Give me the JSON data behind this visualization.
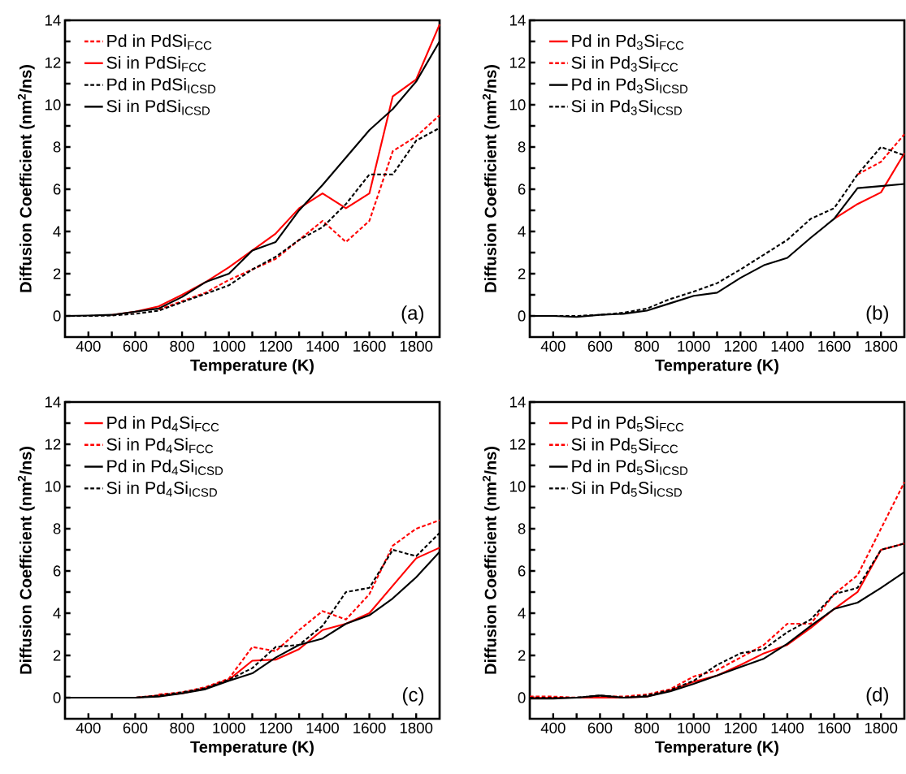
{
  "chart_data": [
    {
      "type": "line",
      "xlabel": "Temperature (K)",
      "ylabel": "Diffusion Coefficient (nm$^{2}$/ns)",
      "annotations": [
        "(a)"
      ],
      "legend": "top left",
      "x": [
        300,
        400,
        500,
        600,
        700,
        800,
        900,
        1000,
        1100,
        1200,
        1300,
        1400,
        1500,
        1600,
        1700,
        1800,
        1900
      ],
      "xlim": [
        300,
        1900
      ],
      "ylim": [
        -1,
        14
      ],
      "xticks": [
        400,
        {
          "value": 500,
          "label": null
        },
        600,
        {
          "value": 700,
          "label": null
        },
        800,
        {
          "value": 900,
          "label": null
        },
        1000,
        {
          "value": 1100,
          "label": null
        },
        1200,
        {
          "value": 1300,
          "label": null
        },
        1400,
        {
          "value": 1500,
          "label": null
        },
        1600,
        {
          "value": 1700,
          "label": null
        },
        1800
      ],
      "yticks": [
        0,
        {
          "value": 1,
          "label": null
        },
        2,
        {
          "value": 3,
          "label": null
        },
        4,
        {
          "value": 5,
          "label": null
        },
        6,
        {
          "value": 7,
          "label": null
        },
        8,
        {
          "value": 9,
          "label": null
        },
        10,
        {
          "value": 11,
          "label": null
        },
        12,
        {
          "value": 13,
          "label": null
        },
        14
      ],
      "series": [
        {
          "name": "Pd in PdSi$_{FCC}$",
          "color": "#ff0000",
          "line_style": "dashed",
          "values": [
            null,
            null,
            null,
            null,
            0.3,
            0.7,
            1.1,
            1.7,
            2.2,
            2.7,
            3.6,
            4.5,
            3.5,
            4.5,
            7.8,
            8.5,
            9.5
          ]
        },
        {
          "name": "Si in PdSi$_{FCC}$",
          "color": "#ff0000",
          "line_style": "solid",
          "values": [
            null,
            null,
            0.05,
            0.2,
            0.45,
            1.0,
            1.6,
            2.3,
            3.1,
            3.9,
            5.1,
            5.8,
            5.1,
            5.8,
            10.4,
            11.2,
            13.8
          ]
        },
        {
          "name": "Pd in PdSi$_{ICSD}$",
          "color": "#000000",
          "line_style": "dashed",
          "values": [
            0,
            0,
            0.02,
            0.1,
            0.25,
            0.65,
            1.05,
            1.45,
            2.2,
            2.8,
            3.6,
            4.2,
            5.3,
            6.7,
            6.7,
            8.3,
            8.9
          ]
        },
        {
          "name": "Si in PdSi$_{ICSD}$",
          "color": "#000000",
          "line_style": "solid",
          "values": [
            0,
            0.02,
            0.05,
            0.2,
            0.35,
            0.9,
            1.6,
            2.0,
            3.1,
            3.5,
            5.0,
            6.2,
            7.5,
            8.8,
            9.8,
            11.1,
            13.0
          ]
        }
      ]
    },
    {
      "type": "line",
      "xlabel": "Temperature (K)",
      "ylabel": "Diffusion Coefficient (nm$^{2}$/ns)",
      "annotations": [
        "(b)"
      ],
      "legend": "top left",
      "x": [
        300,
        400,
        500,
        600,
        700,
        800,
        900,
        1000,
        1100,
        1200,
        1300,
        1400,
        1500,
        1600,
        1700,
        1800,
        1900
      ],
      "xlim": [
        300,
        1900
      ],
      "ylim": [
        -1,
        14
      ],
      "xticks": [
        400,
        {
          "value": 500,
          "label": null
        },
        600,
        {
          "value": 700,
          "label": null
        },
        800,
        {
          "value": 900,
          "label": null
        },
        1000,
        {
          "value": 1100,
          "label": null
        },
        1200,
        {
          "value": 1300,
          "label": null
        },
        1400,
        {
          "value": 1500,
          "label": null
        },
        1600,
        {
          "value": 1700,
          "label": null
        },
        1800
      ],
      "yticks": [
        0,
        {
          "value": 1,
          "label": null
        },
        2,
        {
          "value": 3,
          "label": null
        },
        4,
        {
          "value": 5,
          "label": null
        },
        6,
        {
          "value": 7,
          "label": null
        },
        8,
        {
          "value": 9,
          "label": null
        },
        10,
        {
          "value": 11,
          "label": null
        },
        12,
        {
          "value": 13,
          "label": null
        },
        14
      ],
      "series": [
        {
          "name": "Pd in Pd$_{3}$Si$_{FCC}$",
          "color": "#ff0000",
          "line_style": "solid",
          "values": [
            null,
            null,
            null,
            null,
            null,
            null,
            null,
            null,
            null,
            null,
            null,
            null,
            null,
            4.6,
            5.3,
            5.85,
            7.7
          ]
        },
        {
          "name": "Si in Pd$_{3}$Si$_{FCC}$",
          "color": "#ff0000",
          "line_style": "dashed",
          "values": [
            null,
            null,
            null,
            null,
            null,
            null,
            null,
            null,
            null,
            null,
            null,
            null,
            null,
            null,
            6.7,
            7.3,
            8.6
          ]
        },
        {
          "name": "Pd in Pd$_{3}$Si$_{ICSD}$",
          "color": "#000000",
          "line_style": "solid",
          "values": [
            0,
            0,
            -0.05,
            0.05,
            0.1,
            0.25,
            0.6,
            0.95,
            1.1,
            1.8,
            2.4,
            2.75,
            3.7,
            4.6,
            6.05,
            6.15,
            6.25
          ]
        },
        {
          "name": "Si in Pd$_{3}$Si$_{ICSD}$",
          "color": "#000000",
          "line_style": "dashed",
          "values": [
            0,
            0,
            0,
            0.05,
            0.15,
            0.35,
            0.8,
            1.15,
            1.55,
            2.2,
            2.9,
            3.6,
            4.6,
            5.1,
            6.7,
            8.0,
            7.6
          ]
        }
      ]
    },
    {
      "type": "line",
      "xlabel": "Temperature (K)",
      "ylabel": "Diffusion Coefficient (nm$^{2}$/ns)",
      "annotations": [
        "(c)"
      ],
      "legend": "top left",
      "x": [
        300,
        400,
        500,
        600,
        700,
        800,
        900,
        1000,
        1100,
        1200,
        1300,
        1400,
        1500,
        1600,
        1700,
        1800,
        1900
      ],
      "xlim": [
        300,
        1900
      ],
      "ylim": [
        -1,
        14
      ],
      "xticks": [
        400,
        {
          "value": 500,
          "label": null
        },
        600,
        {
          "value": 700,
          "label": null
        },
        800,
        {
          "value": 900,
          "label": null
        },
        1000,
        {
          "value": 1100,
          "label": null
        },
        1200,
        {
          "value": 1300,
          "label": null
        },
        1400,
        {
          "value": 1500,
          "label": null
        },
        1600,
        {
          "value": 1700,
          "label": null
        },
        1800
      ],
      "yticks": [
        0,
        {
          "value": 1,
          "label": null
        },
        2,
        {
          "value": 3,
          "label": null
        },
        4,
        {
          "value": 5,
          "label": null
        },
        6,
        {
          "value": 7,
          "label": null
        },
        8,
        {
          "value": 9,
          "label": null
        },
        10,
        {
          "value": 11,
          "label": null
        },
        12,
        {
          "value": 13,
          "label": null
        },
        14
      ],
      "series": [
        {
          "name": "Pd in Pd$_{4}$Si$_{FCC}$",
          "color": "#ff0000",
          "line_style": "solid",
          "values": [
            null,
            null,
            0,
            0,
            0.1,
            0.2,
            0.45,
            0.85,
            1.75,
            1.8,
            2.3,
            3.2,
            3.5,
            4.0,
            5.3,
            6.6,
            7.1
          ]
        },
        {
          "name": "Si in Pd$_{4}$Si$_{FCC}$",
          "color": "#ff0000",
          "line_style": "dashed",
          "values": [
            null,
            null,
            null,
            null,
            0.15,
            0.25,
            0.5,
            0.9,
            2.4,
            2.2,
            3.2,
            4.1,
            3.7,
            4.9,
            7.2,
            8.0,
            8.4
          ]
        },
        {
          "name": "Pd in Pd$_{4}$Si$_{ICSD}$",
          "color": "#000000",
          "line_style": "solid",
          "values": [
            0,
            0,
            0,
            0,
            0.05,
            0.2,
            0.4,
            0.8,
            1.15,
            1.9,
            2.5,
            2.8,
            3.5,
            3.9,
            4.7,
            5.7,
            6.9
          ]
        },
        {
          "name": "Si in Pd$_{4}$Si$_{ICSD}$",
          "color": "#000000",
          "line_style": "dashed",
          "values": [
            0,
            0,
            0,
            0,
            0.1,
            0.25,
            0.45,
            0.85,
            1.4,
            2.4,
            2.5,
            3.4,
            5.0,
            5.2,
            7.0,
            6.7,
            7.8
          ]
        }
      ]
    },
    {
      "type": "line",
      "xlabel": "Temperature (K)",
      "ylabel": "Diffusion Coefficient (nm$^{2}$/ns)",
      "annotations": [
        "(d)"
      ],
      "legend": "top left",
      "x": [
        300,
        400,
        500,
        600,
        700,
        800,
        900,
        1000,
        1100,
        1200,
        1300,
        1400,
        1500,
        1600,
        1700,
        1800,
        1900
      ],
      "xlim": [
        300,
        1900
      ],
      "ylim": [
        -1,
        14
      ],
      "xticks": [
        400,
        {
          "value": 500,
          "label": null
        },
        600,
        {
          "value": 700,
          "label": null
        },
        800,
        {
          "value": 900,
          "label": null
        },
        1000,
        {
          "value": 1100,
          "label": null
        },
        1200,
        {
          "value": 1300,
          "label": null
        },
        1400,
        {
          "value": 1500,
          "label": null
        },
        1600,
        {
          "value": 1700,
          "label": null
        },
        1800
      ],
      "yticks": [
        0,
        {
          "value": 1,
          "label": null
        },
        2,
        {
          "value": 3,
          "label": null
        },
        4,
        {
          "value": 5,
          "label": null
        },
        6,
        {
          "value": 7,
          "label": null
        },
        8,
        {
          "value": 9,
          "label": null
        },
        10,
        {
          "value": 11,
          "label": null
        },
        12,
        {
          "value": 13,
          "label": null
        },
        14
      ],
      "series": [
        {
          "name": "Pd in Pd$_{5}$Si$_{FCC}$",
          "color": "#ff0000",
          "line_style": "solid",
          "values": [
            0,
            0,
            0,
            0,
            0,
            0.05,
            0.35,
            0.75,
            1.05,
            1.55,
            2.1,
            2.5,
            3.3,
            4.2,
            5.0,
            7.0,
            7.3
          ]
        },
        {
          "name": "Si in Pd$_{5}$Si$_{FCC}$",
          "color": "#ff0000",
          "line_style": "dashed",
          "values": [
            0.05,
            0.05,
            0,
            0.05,
            0.05,
            0.15,
            0.4,
            1.0,
            1.3,
            1.9,
            2.5,
            3.5,
            3.5,
            4.9,
            5.8,
            8.0,
            10.2
          ]
        },
        {
          "name": "Pd in Pd$_{5}$Si$_{ICSD}$",
          "color": "#000000",
          "line_style": "solid",
          "values": [
            -0.05,
            -0.05,
            0,
            0.1,
            0,
            0.05,
            0.3,
            0.65,
            1.05,
            1.45,
            1.85,
            2.55,
            3.4,
            4.2,
            4.5,
            5.2,
            5.95
          ]
        },
        {
          "name": "Si in Pd$_{5}$Si$_{ICSD}$",
          "color": "#000000",
          "line_style": "dashed",
          "values": [
            0,
            0,
            0,
            0.1,
            0,
            0.1,
            0.35,
            0.8,
            1.55,
            2.1,
            2.3,
            3.1,
            3.7,
            4.9,
            5.2,
            7.0,
            7.3
          ]
        }
      ]
    }
  ]
}
